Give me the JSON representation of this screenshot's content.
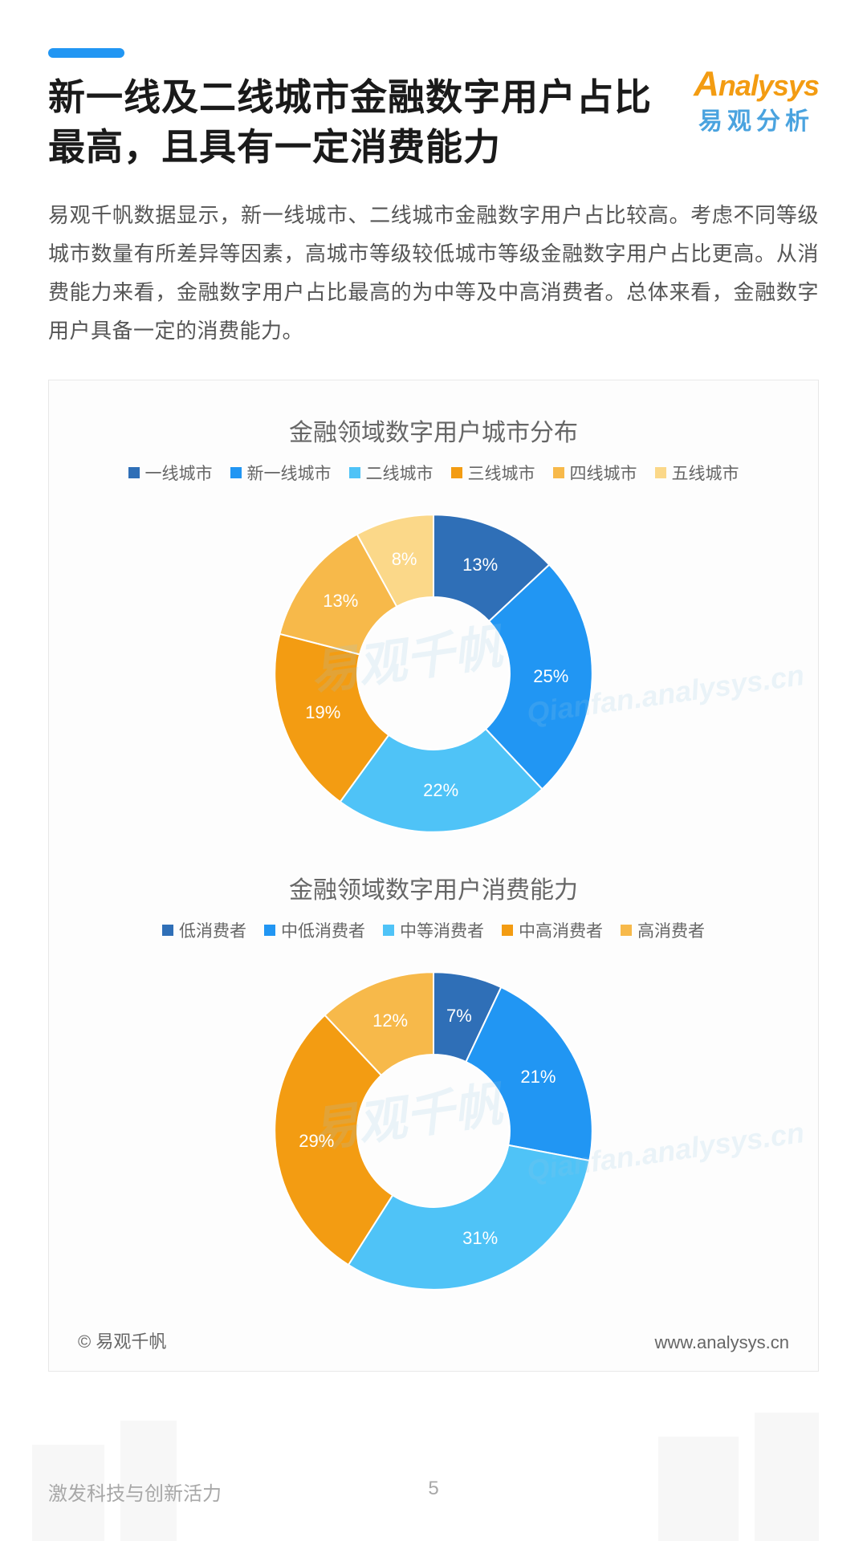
{
  "header": {
    "title": "新一线及二线城市金融数字用户占比最高，且具有一定消费能力",
    "logo_top": "Analysys",
    "logo_bottom": "易观分析",
    "accent_color": "#2196f3"
  },
  "body": {
    "paragraph": "易观千帆数据显示，新一线城市、二线城市金融数字用户占比较高。考虑不同等级城市数量有所差异等因素，高城市等级较低城市等级金融数字用户占比更高。从消费能力来看，金融数字用户占比最高的为中等及中高消费者。总体来看，金融数字用户具备一定的消费能力。"
  },
  "chart1": {
    "type": "donut",
    "title": "金融领域数字用户城市分布",
    "inner_radius_ratio": 0.48,
    "background_color": "#ffffff",
    "label_color": "#ffffff",
    "label_fontsize": 22,
    "title_fontsize": 30,
    "title_color": "#666666",
    "series": [
      {
        "label": "一线城市",
        "value": 13,
        "color": "#2f6fb7"
      },
      {
        "label": "新一线城市",
        "value": 25,
        "color": "#2196f3"
      },
      {
        "label": "二线城市",
        "value": 22,
        "color": "#4fc3f7"
      },
      {
        "label": "三线城市",
        "value": 19,
        "color": "#f39c12"
      },
      {
        "label": "四线城市",
        "value": 13,
        "color": "#f7b94a"
      },
      {
        "label": "五线城市",
        "value": 8,
        "color": "#fbd889"
      }
    ]
  },
  "chart2": {
    "type": "donut",
    "title": "金融领域数字用户消费能力",
    "inner_radius_ratio": 0.48,
    "background_color": "#ffffff",
    "label_color": "#ffffff",
    "label_fontsize": 22,
    "title_fontsize": 30,
    "title_color": "#666666",
    "series": [
      {
        "label": "低消费者",
        "value": 7,
        "color": "#2f6fb7"
      },
      {
        "label": "中低消费者",
        "value": 21,
        "color": "#2196f3"
      },
      {
        "label": "中等消费者",
        "value": 31,
        "color": "#4fc3f7"
      },
      {
        "label": "中高消费者",
        "value": 29,
        "color": "#f39c12"
      },
      {
        "label": "高消费者",
        "value": 12,
        "color": "#f7b94a"
      }
    ]
  },
  "watermark": {
    "text_cn": "易观千帆",
    "text_en": "Qianfan.analysys.cn",
    "color": "rgba(150,200,230,0.18)"
  },
  "source": {
    "copyright": "© 易观千帆",
    "url": "www.analysys.cn"
  },
  "footer": {
    "tagline": "激发科技与创新活力",
    "page_number": "5"
  }
}
